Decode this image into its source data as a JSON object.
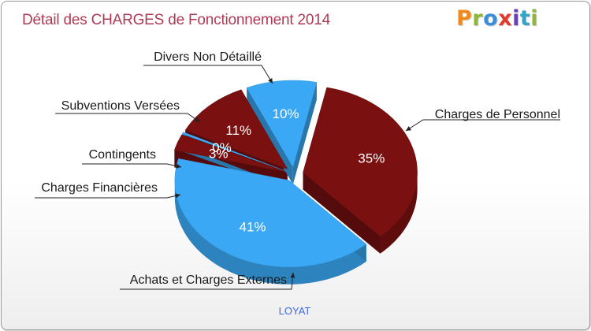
{
  "title": "Détail des CHARGES de Fonctionnement 2014",
  "logo": {
    "text": "Proxiti",
    "colors": [
      "#f08a1c",
      "#8db83a",
      "#3a8fd8",
      "#e03a2e",
      "#6a3fb0",
      "#33a4c8",
      "#8db83a"
    ]
  },
  "footer": "LOYAT",
  "colors": {
    "blue": "#3aa8f4",
    "dark_red": "#7a1010",
    "title": "#b03a55",
    "footer": "#4169e1"
  },
  "chart_data": {
    "type": "pie",
    "title": "Détail des CHARGES de Fonctionnement 2014",
    "subtitle": "LOYAT",
    "slices": [
      {
        "label": "Charges de Personnel",
        "value": 35,
        "display": "35%",
        "color": "#7a1010"
      },
      {
        "label": "Achats et Charges Externes",
        "value": 41,
        "display": "41%",
        "color": "#3aa8f4"
      },
      {
        "label": "Charges Financières",
        "value": 3,
        "display": "3%",
        "color": "#7a1010"
      },
      {
        "label": "Contingents",
        "value": 0.4,
        "display": "0%",
        "color": "#3aa8f4"
      },
      {
        "label": "Subventions Versées",
        "value": 11,
        "display": "11%",
        "color": "#7a1010"
      },
      {
        "label": "Divers Non Détaillé",
        "value": 10,
        "display": "10%",
        "color": "#3aa8f4"
      }
    ]
  }
}
